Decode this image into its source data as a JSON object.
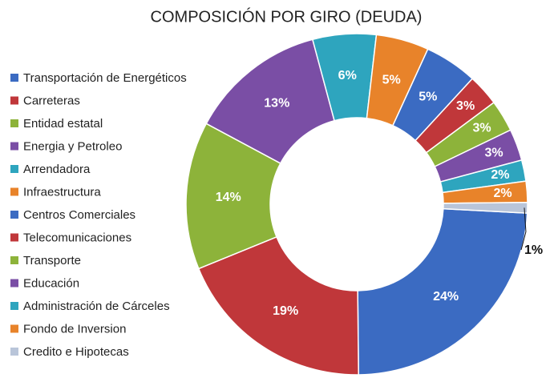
{
  "chart_data": {
    "type": "donut",
    "title": "COMPOSICIÓN POR GIRO (DEUDA)",
    "categories": [
      "Transportación de Energéticos",
      "Carreteras",
      "Entidad estatal",
      "Energia y Petroleo",
      "Arrendadora",
      "Infraestructura",
      "Centros Comerciales",
      "Telecomunicaciones",
      "Transporte",
      "Educación",
      "Administración de Cárceles",
      "Fondo de Inversion",
      "Credito e Hipotecas"
    ],
    "values": [
      24,
      19,
      14,
      13,
      6,
      5,
      5,
      3,
      3,
      3,
      2,
      2,
      1
    ],
    "value_labels": [
      "24%",
      "19%",
      "14%",
      "13%",
      "6%",
      "5%",
      "5%",
      "3%",
      "3%",
      "3%",
      "2%",
      "2%",
      "1%"
    ],
    "colors": [
      "#3b6bc2",
      "#c0373a",
      "#8db33a",
      "#7a4ea5",
      "#2ea5be",
      "#e8832a",
      "#3b6bc2",
      "#c0373a",
      "#8db33a",
      "#7a4ea5",
      "#2ea5be",
      "#e8832a",
      "#b9c5d9"
    ],
    "legend": "left"
  }
}
